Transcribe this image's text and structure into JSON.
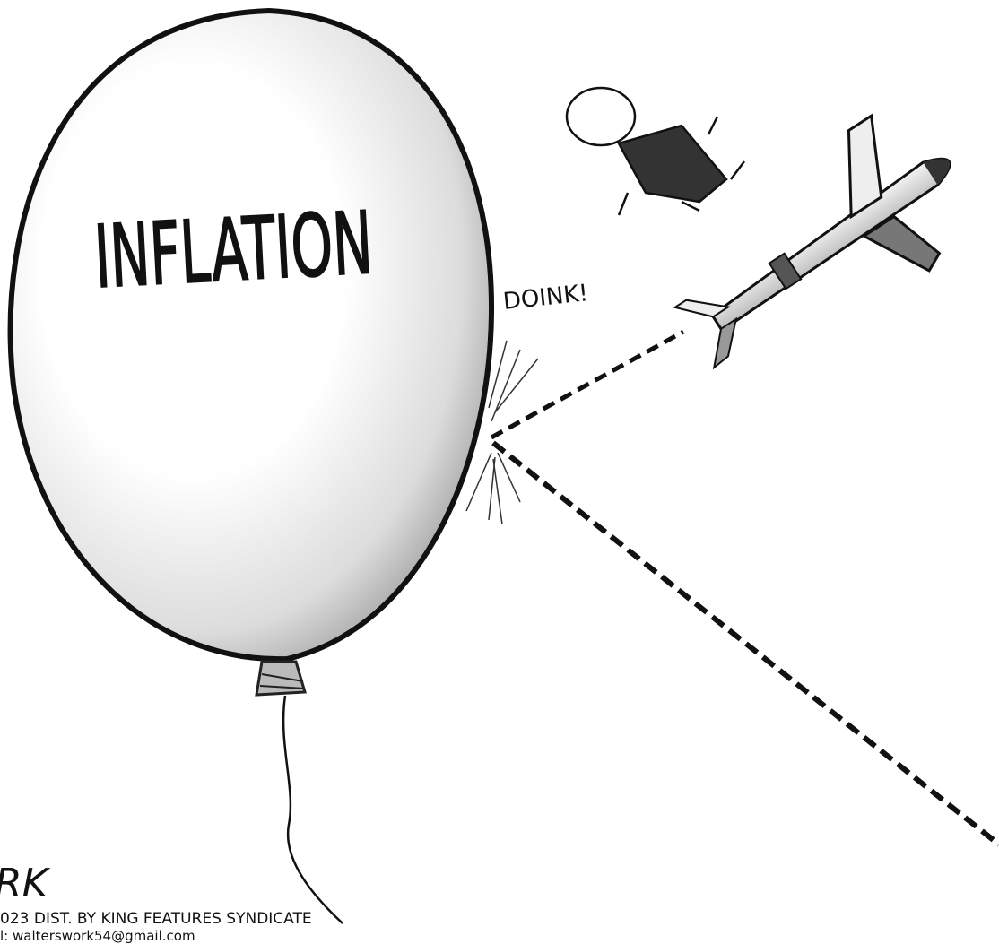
{
  "cartoon": {
    "balloon_label": "INFLATION",
    "sound_effect": "DOINK!",
    "signature": "RK",
    "credit_line": "023 DIST. BY KING FEATURES SYNDICATE",
    "contact_line": "l: walterswork54@gmail.com"
  }
}
